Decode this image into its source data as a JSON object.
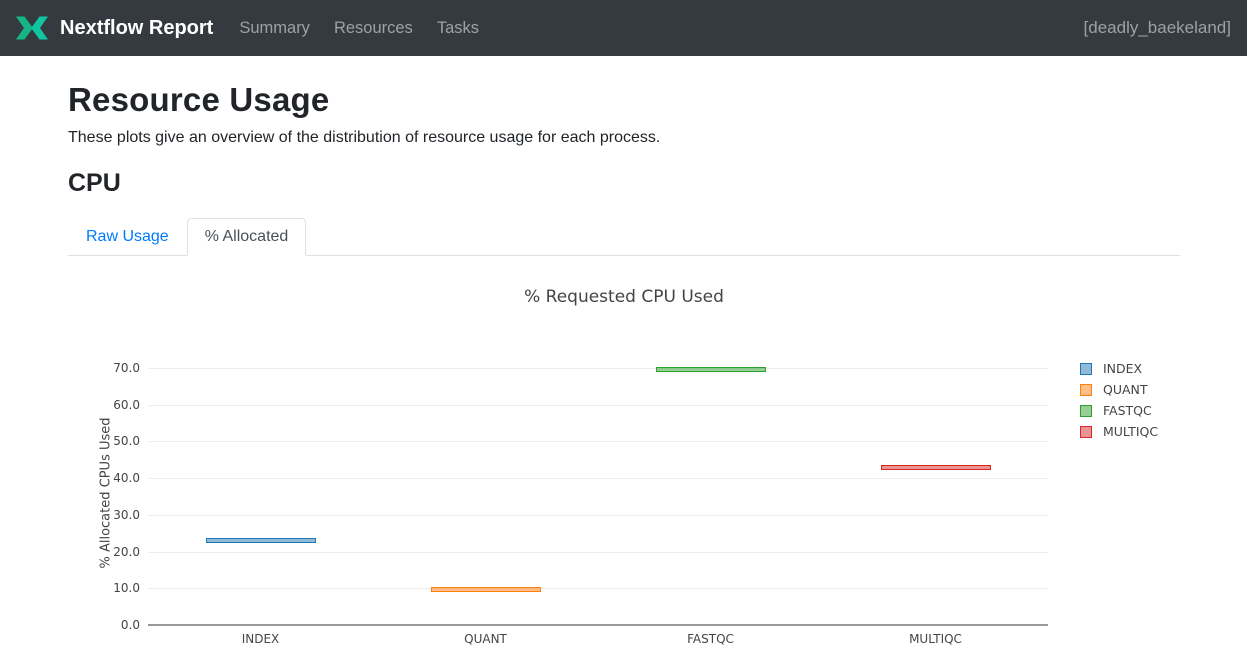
{
  "header": {
    "brand": "Nextflow Report",
    "nav": [
      {
        "label": "Summary"
      },
      {
        "label": "Resources"
      },
      {
        "label": "Tasks"
      }
    ],
    "run_name": "[deadly_baekeland]",
    "colors": {
      "bg": "#343a40",
      "brand_teal": "#11c5a1",
      "nav_text": "#9ba1a6"
    }
  },
  "page": {
    "title": "Resource Usage",
    "description": "These plots give an overview of the distribution of resource usage for each process.",
    "section_title": "CPU"
  },
  "tabs": [
    {
      "label": "Raw Usage",
      "active": false
    },
    {
      "label": "% Allocated",
      "active": true
    }
  ],
  "chart_data": {
    "type": "box",
    "title": "% Requested CPU Used",
    "xlabel": "",
    "ylabel": "% Allocated CPUs Used",
    "categories": [
      "INDEX",
      "QUANT",
      "FASTQC",
      "MULTIQC"
    ],
    "series": [
      {
        "name": "INDEX",
        "color": "#1f77b4",
        "values": [
          22.9
        ]
      },
      {
        "name": "QUANT",
        "color": "#ff7f0e",
        "values": [
          9.7
        ]
      },
      {
        "name": "FASTQC",
        "color": "#2ca02c",
        "values": [
          69.7
        ]
      },
      {
        "name": "MULTIQC",
        "color": "#d62728",
        "values": [
          42.8
        ]
      }
    ],
    "yticks": [
      0,
      10,
      20,
      30,
      40,
      50,
      60,
      70
    ],
    "ytick_labels": [
      "0.0",
      "10.0",
      "20.0",
      "30.0",
      "40.0",
      "50.0",
      "60.0",
      "70.0"
    ],
    "ylim": [
      0,
      75.7
    ],
    "grid": true,
    "legend_position": "right"
  }
}
